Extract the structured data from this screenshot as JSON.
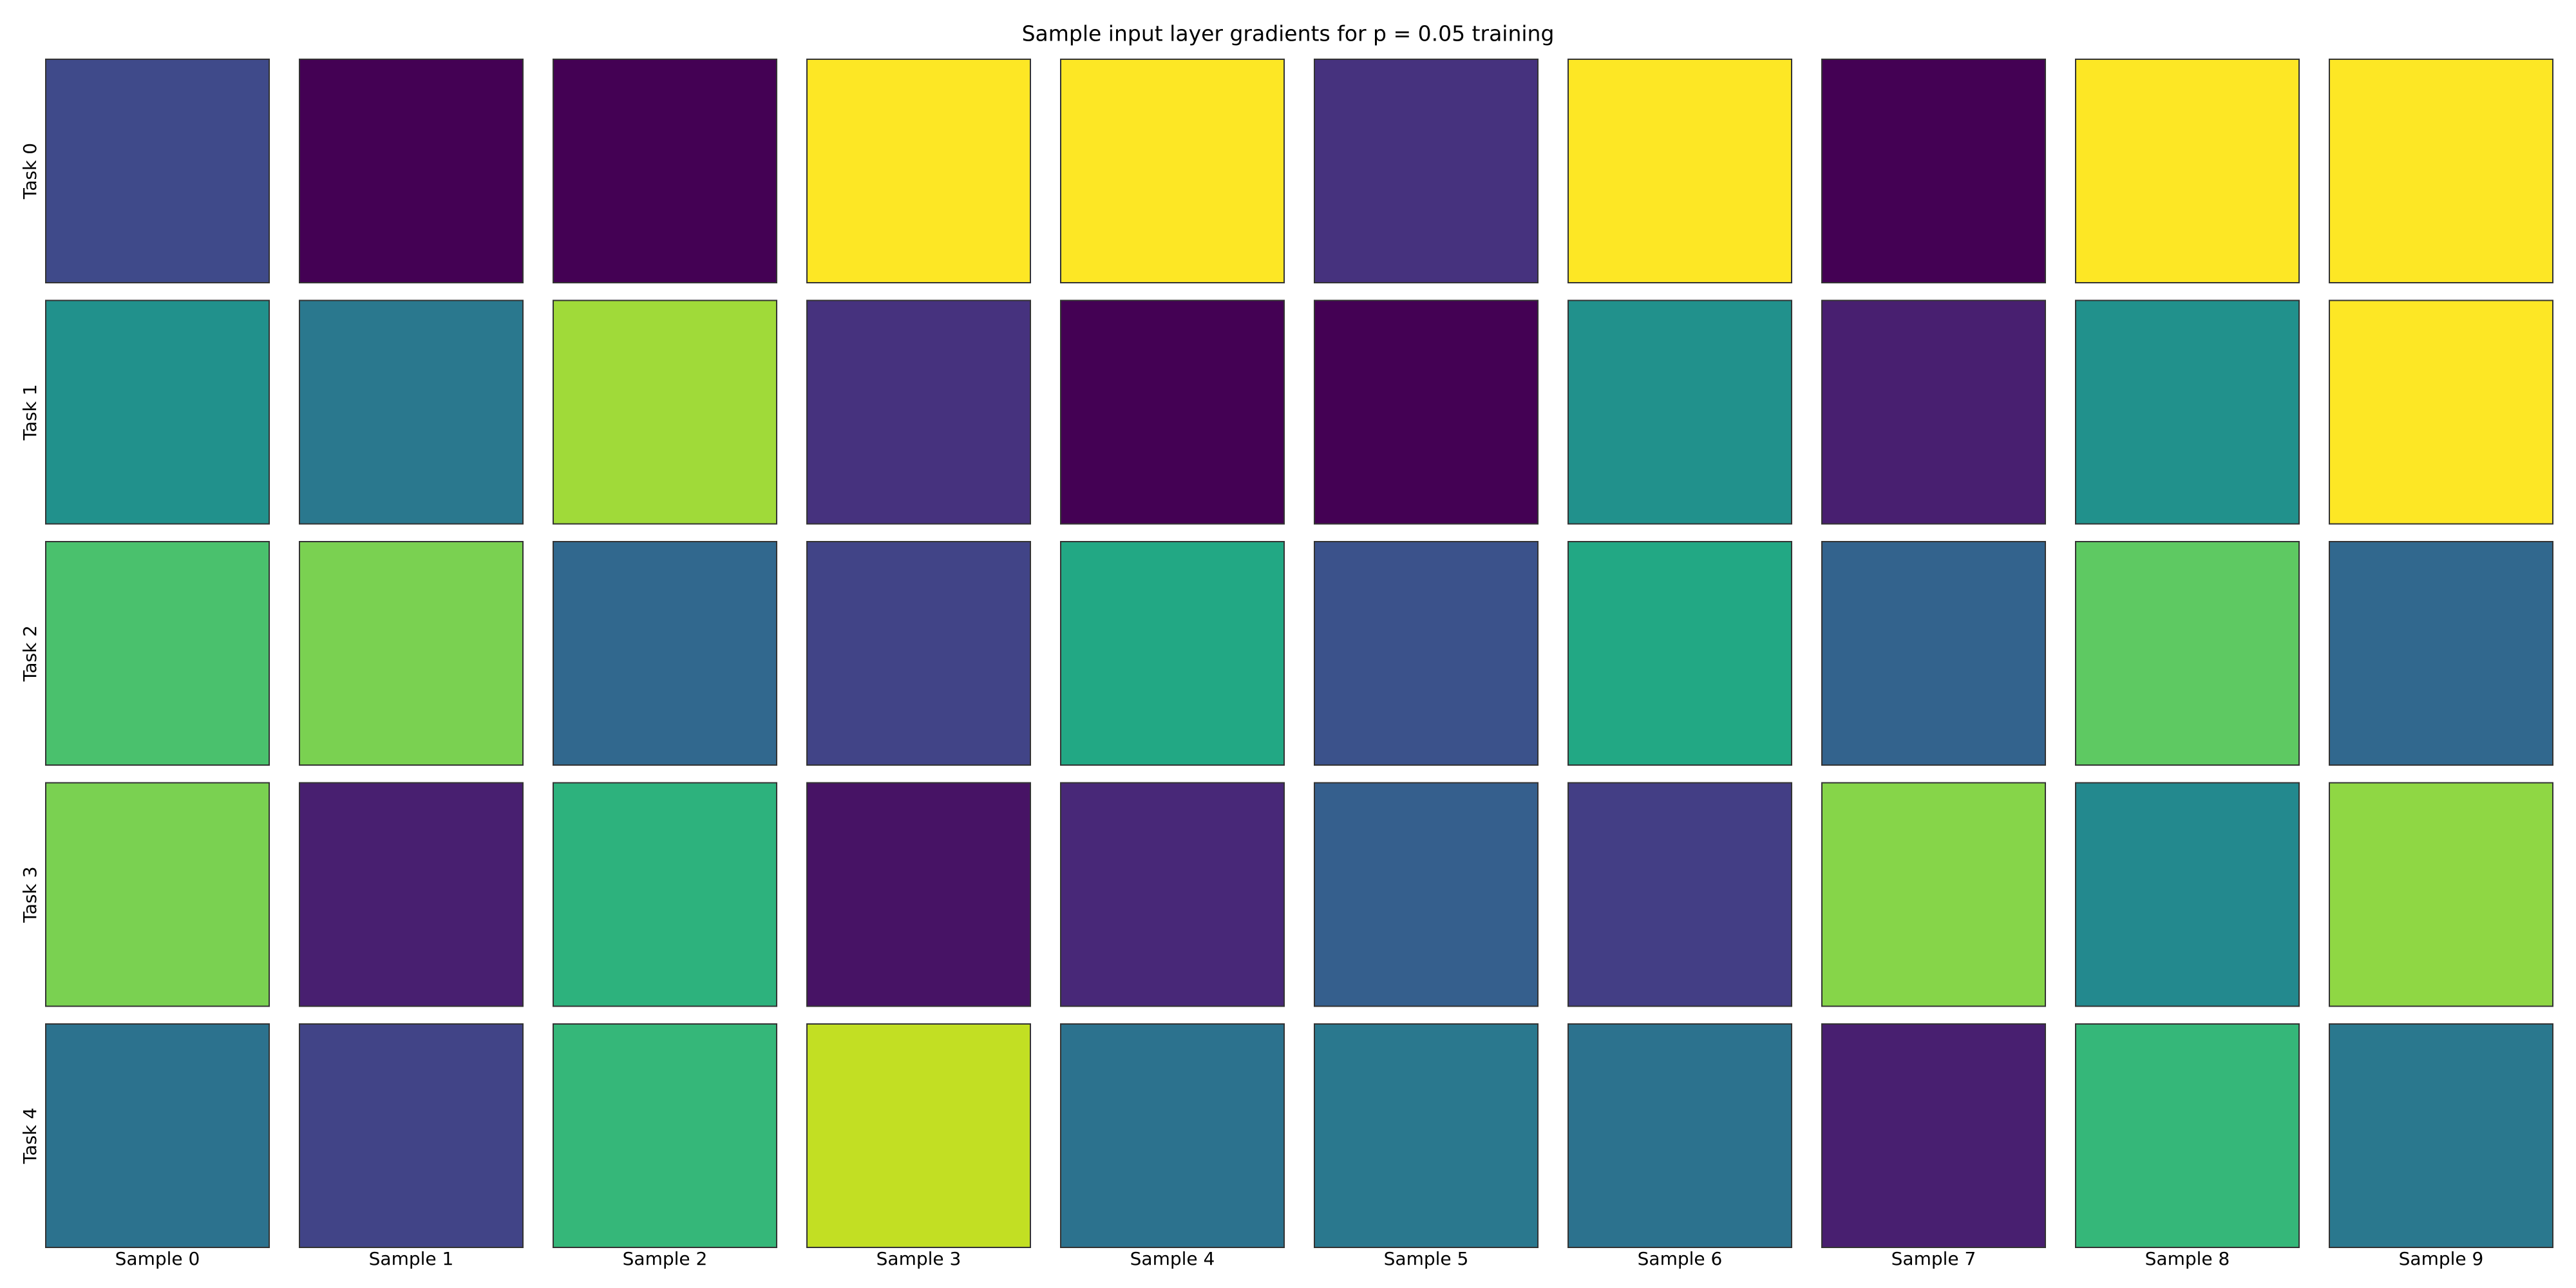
{
  "chart_data": {
    "type": "image-grid",
    "title": "Sample input layer gradients for p = 0.05 training",
    "row_labels": [
      "Task 0",
      "Task 1",
      "Task 2",
      "Task 3",
      "Task 4"
    ],
    "column_labels": [
      "Sample 0",
      "Sample 1",
      "Sample 2",
      "Sample 3",
      "Sample 4",
      "Sample 5",
      "Sample 6",
      "Sample 7",
      "Sample 8",
      "Sample 9"
    ],
    "panel_colors": [
      [
        "#3f4a8a",
        "#440154",
        "#440154",
        "#fde725",
        "#fde725",
        "#46327e",
        "#fde725",
        "#440154",
        "#fde725",
        "#fde725"
      ],
      [
        "#21918c",
        "#2a788e",
        "#a0da39",
        "#46327e",
        "#440154",
        "#440154",
        "#21918c",
        "#481f70",
        "#21918c",
        "#fde725"
      ],
      [
        "#4ac16d",
        "#7ad151",
        "#31688e",
        "#414487",
        "#22a884",
        "#3b528b",
        "#22a884",
        "#33638d",
        "#5ec962",
        "#31688e"
      ],
      [
        "#7ad151",
        "#481f70",
        "#2db27d",
        "#471365",
        "#482878",
        "#355f8d",
        "#433e85",
        "#86d549",
        "#23898e",
        "#8fd744"
      ],
      [
        "#2c728e",
        "#414487",
        "#35b779",
        "#c2df23",
        "#2c728e",
        "#2a788e",
        "#2c728e",
        "#481f70",
        "#35b779",
        "#2a788e"
      ]
    ]
  }
}
